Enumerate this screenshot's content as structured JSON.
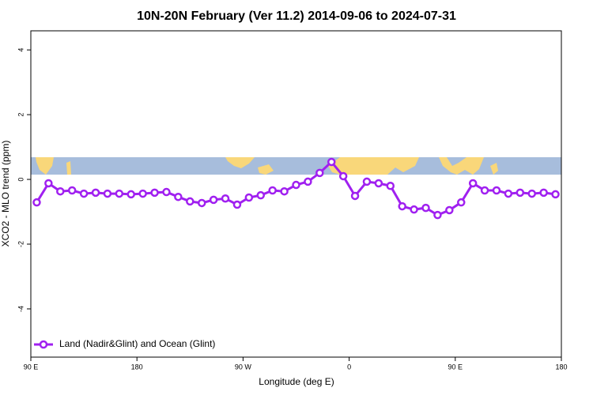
{
  "chart_data": {
    "type": "line",
    "title": "10N-20N February (Ver 11.2)   2014-09-06 to 2024-07-31",
    "xlabel": "Longitude (deg E)",
    "ylabel": "XCO2 - MLO trend (ppm)",
    "x": [
      95,
      105,
      115,
      125,
      135,
      145,
      155,
      165,
      175,
      185,
      195,
      205,
      215,
      225,
      235,
      245,
      255,
      265,
      275,
      285,
      295,
      305,
      315,
      325,
      335,
      345,
      355,
      365,
      375,
      385,
      395,
      405,
      415,
      425,
      435,
      445,
      455,
      465,
      475,
      485,
      495,
      505,
      515,
      525,
      535
    ],
    "series": [
      {
        "name": "Land (Nadir&Glint) and Ocean (Glint)",
        "color": "#a020f0",
        "values": [
          -0.71,
          -0.12,
          -0.37,
          -0.34,
          -0.44,
          -0.41,
          -0.44,
          -0.44,
          -0.46,
          -0.44,
          -0.41,
          -0.39,
          -0.54,
          -0.68,
          -0.73,
          -0.63,
          -0.59,
          -0.78,
          -0.56,
          -0.49,
          -0.34,
          -0.37,
          -0.17,
          -0.07,
          0.2,
          0.54,
          0.1,
          -0.51,
          -0.07,
          -0.12,
          -0.2,
          -0.83,
          -0.93,
          -0.88,
          -1.1,
          -0.95,
          -0.71,
          -0.12,
          -0.34,
          -0.34,
          -0.44,
          -0.41,
          -0.44,
          -0.41,
          -0.46
        ]
      }
    ],
    "xlim": [
      90,
      540
    ],
    "xticks": [
      {
        "value": 90,
        "label": "90 E"
      },
      180,
      {
        "value": 270,
        "label": "90 W"
      },
      {
        "value": 360,
        "label": "0"
      },
      {
        "value": 450,
        "label": "90 E"
      },
      {
        "value": 540,
        "label": "180"
      }
    ],
    "ylim": [
      -5.49,
      4.59
    ],
    "yticks": [
      -4,
      -2,
      0,
      2,
      4
    ],
    "legend": "bottom-left"
  }
}
